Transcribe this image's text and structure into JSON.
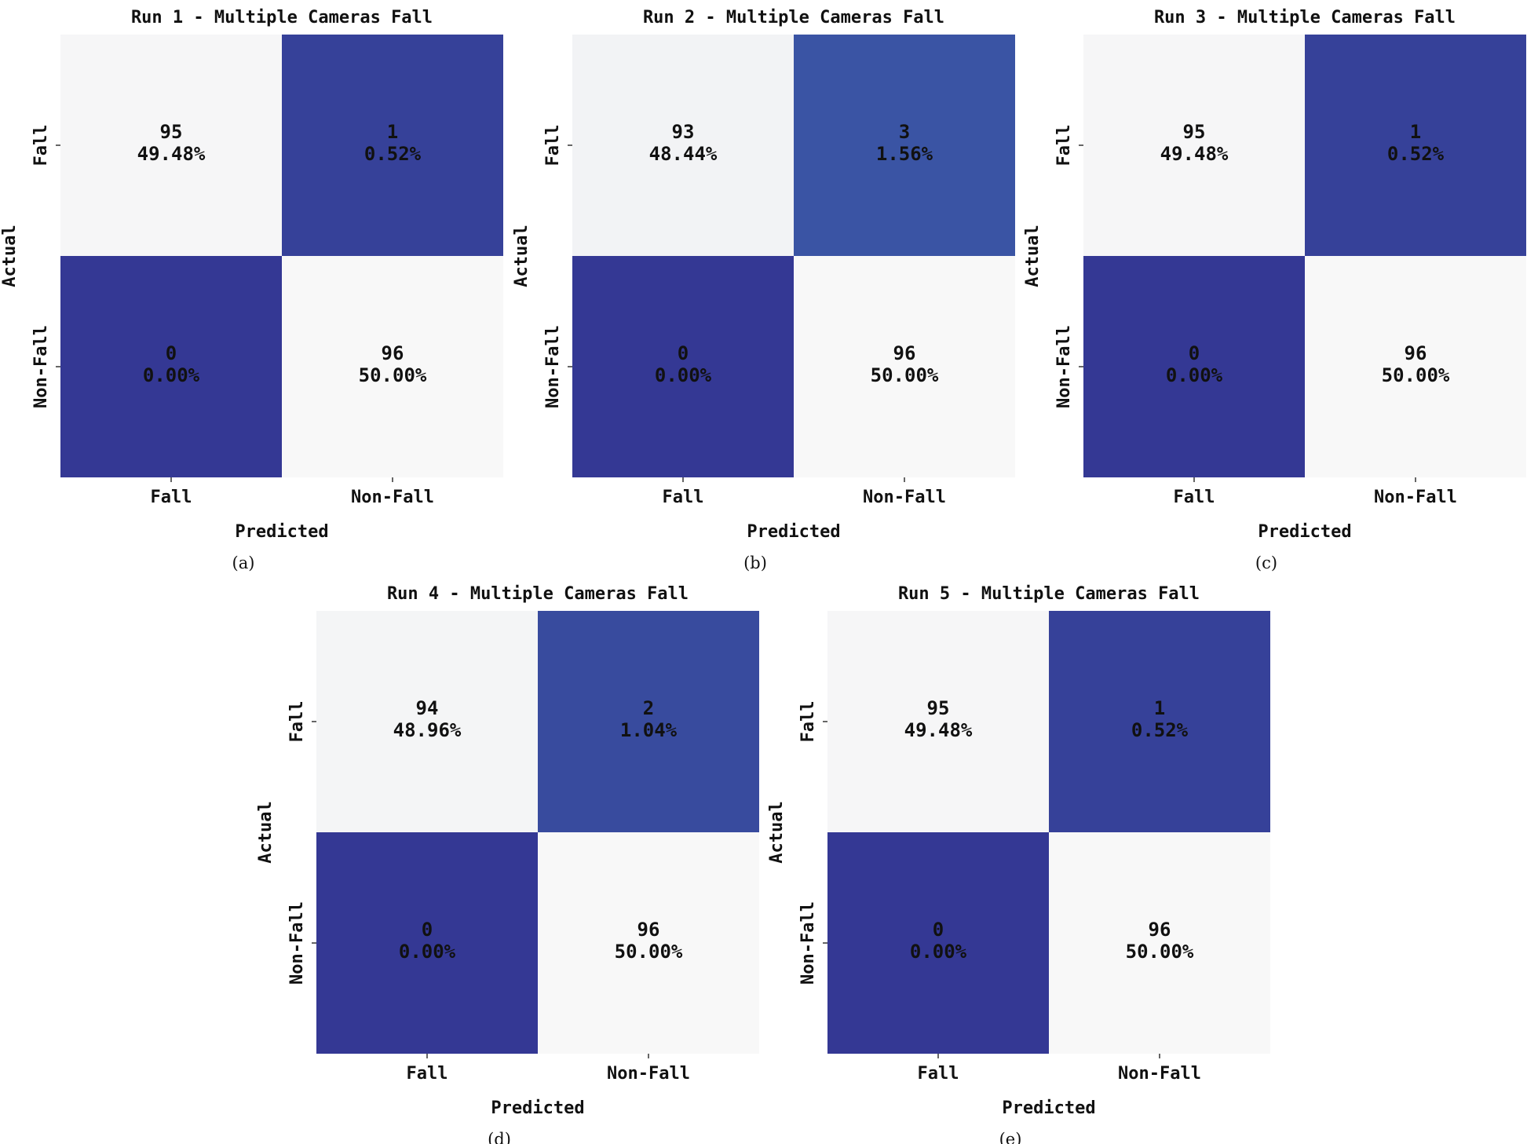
{
  "chart_data": [
    {
      "type": "heatmap",
      "title": "Run 1 - Multiple Cameras Fall",
      "caption": "(a)",
      "xlabel": "Predicted",
      "ylabel": "Actual",
      "x_categories": [
        "Fall",
        "Non-Fall"
      ],
      "y_categories": [
        "Fall",
        "Non-Fall"
      ],
      "values": [
        [
          95,
          1
        ],
        [
          0,
          96
        ]
      ],
      "annotations": [
        [
          "95",
          "49.48%",
          "1",
          "0.52%"
        ],
        [
          "0",
          "0.00%",
          "96",
          "50.00%"
        ]
      ],
      "colorbar": false
    },
    {
      "type": "heatmap",
      "title": "Run 2 - Multiple Cameras Fall",
      "caption": "(b)",
      "xlabel": "Predicted",
      "ylabel": "Actual",
      "x_categories": [
        "Fall",
        "Non-Fall"
      ],
      "y_categories": [
        "Fall",
        "Non-Fall"
      ],
      "values": [
        [
          93,
          3
        ],
        [
          0,
          96
        ]
      ],
      "annotations": [
        [
          "93",
          "48.44%",
          "3",
          "1.56%"
        ],
        [
          "0",
          "0.00%",
          "96",
          "50.00%"
        ]
      ],
      "colorbar": false
    },
    {
      "type": "heatmap",
      "title": "Run 3 - Multiple Cameras Fall",
      "caption": "(c)",
      "xlabel": "Predicted",
      "ylabel": "Actual",
      "x_categories": [
        "Fall",
        "Non-Fall"
      ],
      "y_categories": [
        "Fall",
        "Non-Fall"
      ],
      "values": [
        [
          95,
          1
        ],
        [
          0,
          96
        ]
      ],
      "annotations": [
        [
          "95",
          "49.48%",
          "1",
          "0.52%"
        ],
        [
          "0",
          "0.00%",
          "96",
          "50.00%"
        ]
      ],
      "colorbar": false
    },
    {
      "type": "heatmap",
      "title": "Run 4 - Multiple Cameras Fall",
      "caption": "(d)",
      "xlabel": "Predicted",
      "ylabel": "Actual",
      "x_categories": [
        "Fall",
        "Non-Fall"
      ],
      "y_categories": [
        "Fall",
        "Non-Fall"
      ],
      "values": [
        [
          94,
          2
        ],
        [
          0,
          96
        ]
      ],
      "annotations": [
        [
          "94",
          "48.96%",
          "2",
          "1.04%"
        ],
        [
          "0",
          "0.00%",
          "96",
          "50.00%"
        ]
      ],
      "colorbar": false
    },
    {
      "type": "heatmap",
      "title": "Run 5 - Multiple Cameras Fall",
      "caption": "(e)",
      "xlabel": "Predicted",
      "ylabel": "Actual",
      "x_categories": [
        "Fall",
        "Non-Fall"
      ],
      "y_categories": [
        "Fall",
        "Non-Fall"
      ],
      "values": [
        [
          95,
          1
        ],
        [
          0,
          96
        ]
      ],
      "annotations": [
        [
          "95",
          "49.48%",
          "1",
          "0.52%"
        ],
        [
          "0",
          "0.00%",
          "96",
          "50.00%"
        ]
      ],
      "colorbar": false
    }
  ],
  "colors": {
    "low": "#343894",
    "mid": "#3c5ca8",
    "high": "#f8f8f8",
    "text_dark": "#111111",
    "text_light": "#ffffff"
  }
}
